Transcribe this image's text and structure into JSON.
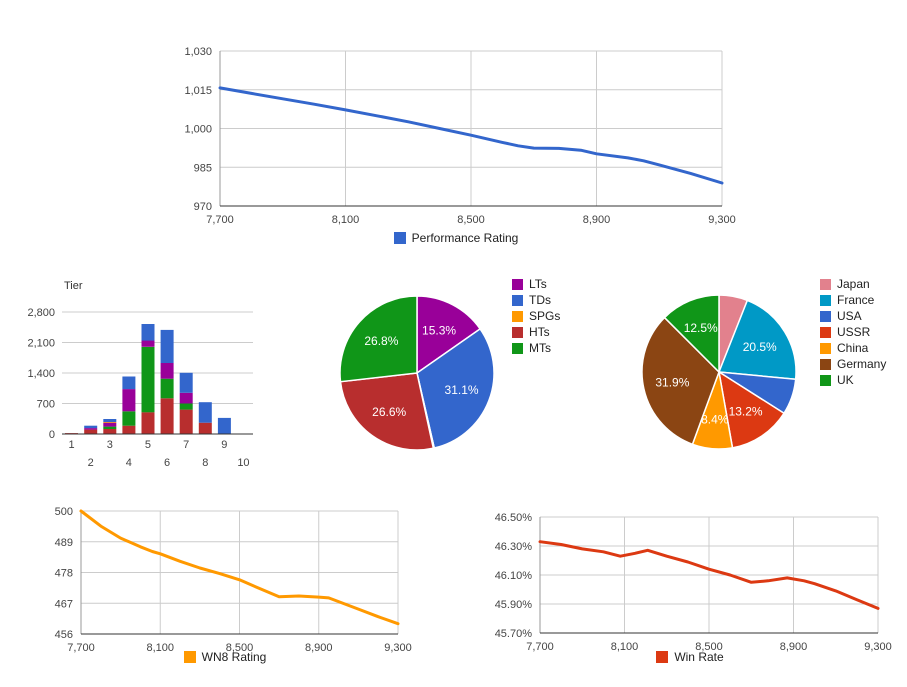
{
  "page": {
    "background": "#FFFFFF"
  },
  "chart_data": [
    {
      "id": "performance-rating-trend",
      "type": "line",
      "legend": "Performance Rating",
      "color": "#3366CC",
      "xlim": [
        7700,
        9300
      ],
      "ylim": [
        970,
        1030
      ],
      "xticks": [
        {
          "v": 7700,
          "label": "7,700"
        },
        {
          "v": 8100,
          "label": "8,100"
        },
        {
          "v": 8500,
          "label": "8,500"
        },
        {
          "v": 8900,
          "label": "8,900"
        },
        {
          "v": 9300,
          "label": "9,300"
        }
      ],
      "yticks": [
        {
          "v": 970,
          "label": "970"
        },
        {
          "v": 985,
          "label": "985"
        },
        {
          "v": 1000,
          "label": "1,000"
        },
        {
          "v": 1015,
          "label": "1,015"
        },
        {
          "v": 1030,
          "label": "1,030"
        }
      ],
      "points": [
        [
          7700,
          1015.7
        ],
        [
          7800,
          1013.6
        ],
        [
          7900,
          1011.5
        ],
        [
          8000,
          1009.4
        ],
        [
          8100,
          1007.2
        ],
        [
          8200,
          1004.9
        ],
        [
          8300,
          1002.6
        ],
        [
          8400,
          1000.0
        ],
        [
          8500,
          997.4
        ],
        [
          8600,
          994.6
        ],
        [
          8650,
          993.3
        ],
        [
          8700,
          992.4
        ],
        [
          8780,
          992.3
        ],
        [
          8850,
          991.6
        ],
        [
          8900,
          990.2
        ],
        [
          9000,
          988.6
        ],
        [
          9050,
          987.5
        ],
        [
          9100,
          985.9
        ],
        [
          9200,
          982.6
        ],
        [
          9300,
          978.9
        ]
      ]
    },
    {
      "id": "battles-by-tier",
      "type": "stacked-bar",
      "title": "Tier",
      "categories": [
        "1",
        "2",
        "3",
        "4",
        "5",
        "6",
        "7",
        "8",
        "9",
        "10"
      ],
      "ylim": [
        0,
        2800
      ],
      "yticks": [
        {
          "v": 0,
          "label": "0"
        },
        {
          "v": 700,
          "label": "700"
        },
        {
          "v": 1400,
          "label": "1,400"
        },
        {
          "v": 2100,
          "label": "2,100"
        },
        {
          "v": 2800,
          "label": "2,800"
        }
      ],
      "series": [
        {
          "name": "HTs",
          "color": "#B82E2E",
          "values": [
            20,
            100,
            115,
            190,
            500,
            820,
            560,
            260,
            0,
            0
          ]
        },
        {
          "name": "MTs",
          "color": "#109618",
          "values": [
            0,
            0,
            55,
            330,
            1500,
            450,
            140,
            0,
            0,
            0
          ]
        },
        {
          "name": "LTs",
          "color": "#990099",
          "values": [
            0,
            35,
            90,
            510,
            145,
            360,
            245,
            0,
            0,
            0
          ]
        },
        {
          "name": "SPGs",
          "color": "#FF9900",
          "values": [
            0,
            0,
            15,
            0,
            0,
            0,
            0,
            0,
            0,
            0
          ]
        },
        {
          "name": "TDs",
          "color": "#3366CC",
          "values": [
            0,
            55,
            70,
            290,
            380,
            760,
            460,
            470,
            370,
            0
          ]
        }
      ]
    },
    {
      "id": "battles-by-vehicle-class",
      "type": "pie",
      "slices": [
        {
          "name": "LTs",
          "color": "#990099",
          "value": 15.3,
          "label": "15.3%"
        },
        {
          "name": "TDs",
          "color": "#3366CC",
          "value": 31.1,
          "label": "31.1%"
        },
        {
          "name": "SPGs",
          "color": "#FF9900",
          "value": 0.2,
          "label": ""
        },
        {
          "name": "HTs",
          "color": "#B82E2E",
          "value": 26.6,
          "label": "26.6%"
        },
        {
          "name": "MTs",
          "color": "#109618",
          "value": 26.8,
          "label": "26.8%"
        }
      ]
    },
    {
      "id": "battles-by-nation",
      "type": "pie",
      "slices": [
        {
          "name": "Japan",
          "color": "#E2818D",
          "value": 6.0,
          "label": ""
        },
        {
          "name": "France",
          "color": "#0099C6",
          "value": 20.5,
          "label": "20.5%"
        },
        {
          "name": "USA",
          "color": "#3366CC",
          "value": 7.5,
          "label": ""
        },
        {
          "name": "USSR",
          "color": "#DC3912",
          "value": 13.2,
          "label": "13.2%"
        },
        {
          "name": "China",
          "color": "#FF9900",
          "value": 8.4,
          "label": "8.4%"
        },
        {
          "name": "Germany",
          "color": "#8B4513",
          "value": 31.9,
          "label": "31.9%"
        },
        {
          "name": "UK",
          "color": "#109618",
          "value": 12.5,
          "label": "12.5%"
        }
      ]
    },
    {
      "id": "wn8-rating-trend",
      "type": "line",
      "legend": "WN8 Rating",
      "color": "#FF9900",
      "xlim": [
        7700,
        9300
      ],
      "ylim": [
        456,
        500
      ],
      "xticks": [
        {
          "v": 7700,
          "label": "7,700"
        },
        {
          "v": 8100,
          "label": "8,100"
        },
        {
          "v": 8500,
          "label": "8,500"
        },
        {
          "v": 8900,
          "label": "8,900"
        },
        {
          "v": 9300,
          "label": "9,300"
        }
      ],
      "yticks": [
        {
          "v": 456,
          "label": "456"
        },
        {
          "v": 467,
          "label": "467"
        },
        {
          "v": 478,
          "label": "478"
        },
        {
          "v": 489,
          "label": "489"
        },
        {
          "v": 500,
          "label": "500"
        }
      ],
      "points": [
        [
          7700,
          500.0
        ],
        [
          7800,
          494.6
        ],
        [
          7900,
          490.3
        ],
        [
          8000,
          487.2
        ],
        [
          8060,
          485.5
        ],
        [
          8100,
          484.7
        ],
        [
          8200,
          482.0
        ],
        [
          8300,
          479.6
        ],
        [
          8400,
          477.6
        ],
        [
          8500,
          475.4
        ],
        [
          8600,
          472.3
        ],
        [
          8700,
          469.3
        ],
        [
          8800,
          469.6
        ],
        [
          8900,
          469.2
        ],
        [
          8950,
          468.9
        ],
        [
          9000,
          467.6
        ],
        [
          9100,
          464.9
        ],
        [
          9200,
          462.2
        ],
        [
          9300,
          459.7
        ]
      ]
    },
    {
      "id": "win-rate-trend",
      "type": "line",
      "legend": "Win Rate",
      "color": "#DC3912",
      "xlim": [
        7700,
        9300
      ],
      "ylim": [
        45.7,
        46.5
      ],
      "xticks": [
        {
          "v": 7700,
          "label": "7,700"
        },
        {
          "v": 8100,
          "label": "8,100"
        },
        {
          "v": 8500,
          "label": "8,500"
        },
        {
          "v": 8900,
          "label": "8,900"
        },
        {
          "v": 9300,
          "label": "9,300"
        }
      ],
      "yticks": [
        {
          "v": 45.7,
          "label": "45.70%"
        },
        {
          "v": 45.9,
          "label": "45.90%"
        },
        {
          "v": 46.1,
          "label": "46.10%"
        },
        {
          "v": 46.3,
          "label": "46.30%"
        },
        {
          "v": 46.5,
          "label": "46.50%"
        }
      ],
      "points": [
        [
          7700,
          46.33
        ],
        [
          7800,
          46.31
        ],
        [
          7900,
          46.28
        ],
        [
          8000,
          46.26
        ],
        [
          8080,
          46.23
        ],
        [
          8150,
          46.25
        ],
        [
          8210,
          46.27
        ],
        [
          8300,
          46.23
        ],
        [
          8400,
          46.19
        ],
        [
          8500,
          46.14
        ],
        [
          8600,
          46.1
        ],
        [
          8700,
          46.05
        ],
        [
          8780,
          46.06
        ],
        [
          8870,
          46.08
        ],
        [
          8950,
          46.06
        ],
        [
          9000,
          46.04
        ],
        [
          9100,
          45.99
        ],
        [
          9200,
          45.93
        ],
        [
          9300,
          45.87
        ]
      ]
    }
  ]
}
